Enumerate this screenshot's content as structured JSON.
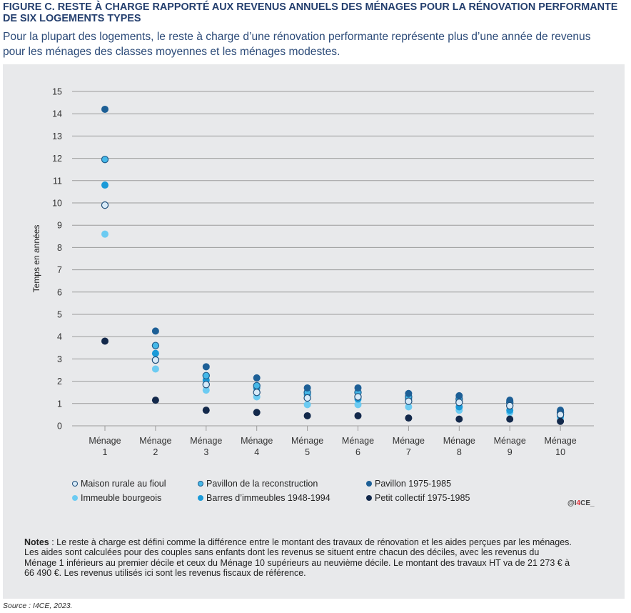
{
  "header": {
    "title_lines": [
      "FIGURE C. RESTE À CHARGE RAPPORTÉ AUX REVENUS ANNUELS DES MÉNAGES POUR LA RÉNOVATION PERFORMANTE",
      "DE SIX LOGEMENTS TYPES"
    ],
    "subtitle_lines": [
      "Pour la plupart des logements, le reste à charge d’une rénovation performante représente plus d’une année de revenus",
      "pour les ménages des classes moyennes et les ménages modestes."
    ]
  },
  "chart_data": {
    "type": "scatter",
    "title": "FIGURE C. RESTE À CHARGE RAPPORTÉ AUX REVENUS ANNUELS DES MÉNAGES POUR LA RÉNOVATION PERFORMANTE DE SIX LOGEMENTS TYPES",
    "subtitle": "Pour la plupart des logements, le reste à charge d’une rénovation performante représente plus d’une année de revenus pour les ménages des classes moyennes et les ménages modestes.",
    "xlabel": "",
    "ylabel": "Temps en années",
    "categories": [
      {
        "line1": "Ménage",
        "line2": "1"
      },
      {
        "line1": "Ménage",
        "line2": "2"
      },
      {
        "line1": "Ménage",
        "line2": "3"
      },
      {
        "line1": "Ménage",
        "line2": "4"
      },
      {
        "line1": "Ménage",
        "line2": "5"
      },
      {
        "line1": "Ménage",
        "line2": "6"
      },
      {
        "line1": "Ménage",
        "line2": "7"
      },
      {
        "line1": "Ménage",
        "line2": "8"
      },
      {
        "line1": "Ménage",
        "line2": "9"
      },
      {
        "line1": "Ménage",
        "line2": "10"
      }
    ],
    "ylim": [
      0,
      15
    ],
    "yticks": [
      "0",
      "1",
      "2",
      "3",
      "4",
      "5",
      "6",
      "7",
      "8",
      "9",
      "10",
      "11",
      "12",
      "13",
      "14",
      "15"
    ],
    "grid": true,
    "legend_position": "bottom",
    "series": [
      {
        "name": "Maison rurale au fioul",
        "color": "#d8eaf8",
        "outline": "#1f4f7a",
        "values": [
          9.9,
          2.95,
          1.85,
          1.5,
          1.25,
          1.3,
          1.1,
          1.05,
          0.9,
          0.5
        ]
      },
      {
        "name": "Pavillon de la reconstruction",
        "color": "#45b8e8",
        "outline": "#1f5f8f",
        "values": [
          11.95,
          3.6,
          2.25,
          1.8,
          1.5,
          1.5,
          1.3,
          1.2,
          1.05,
          0.6
        ]
      },
      {
        "name": "Pavillon 1975-1985",
        "color": "#1d5f96",
        "outline": null,
        "values": [
          14.2,
          4.25,
          2.65,
          2.15,
          1.7,
          1.7,
          1.45,
          1.35,
          1.15,
          0.7
        ]
      },
      {
        "name": "Immeuble bourgeois",
        "color": "#6ccbf2",
        "outline": null,
        "values": [
          8.6,
          2.55,
          1.6,
          1.3,
          0.95,
          0.95,
          0.85,
          0.7,
          0.6,
          0.35
        ]
      },
      {
        "name": "Barres d’immeubles 1948-1994",
        "color": "#1a9ad8",
        "outline": null,
        "values": [
          10.8,
          3.25,
          2.05,
          1.7,
          1.4,
          1.2,
          1.2,
          0.85,
          0.7,
          0.45
        ]
      },
      {
        "name": "Petit collectif 1975-1985",
        "color": "#13294b",
        "outline": null,
        "values": [
          3.8,
          1.15,
          0.7,
          0.6,
          0.45,
          0.45,
          0.35,
          0.3,
          0.3,
          0.2
        ]
      }
    ]
  },
  "logo": {
    "prefix": "@I",
    "accent": "4",
    "suffix": "CE_",
    "accent_color": "#e0303a"
  },
  "notes": {
    "label": "Notes",
    "lines": [
      " : Le reste à charge est défini comme la différence entre le montant des travaux de rénovation et les aides perçues par les ménages.",
      "Les aides sont calculées pour des couples sans enfants dont les revenus se situent entre chacun des déciles, avec les revenus du",
      "Ménage 1 inférieurs au premier décile et ceux du Ménage 10 supérieurs au neuvième décile. Le montant des travaux HT va de 21 273 € à",
      "66 490 €. Les revenus utilisés ici sont les revenus fiscaux de référence."
    ]
  },
  "source": "Source : I4CE, 2023."
}
